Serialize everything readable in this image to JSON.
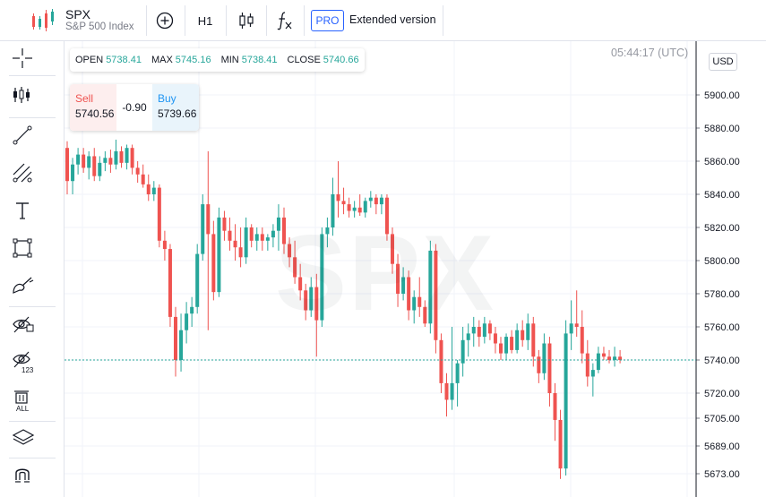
{
  "header": {
    "symbol": "SPX",
    "description": "S&P 500 Index",
    "interval": "H1",
    "pro_badge": "PRO",
    "extended_label": "Extended version",
    "icons": [
      "candles-logo-icon",
      "add-symbol-icon",
      "candle-style-icon",
      "indicators-fx-icon"
    ]
  },
  "left_toolbar": {
    "tools": [
      "crosshair-icon",
      "bar-tools-icon",
      "trend-line-icon",
      "fib-tools-icon",
      "text-icon",
      "rectangle-icon",
      "brush-icon",
      "hide-drawings-icon",
      "hide-indicators-icon",
      "remove-all-icon",
      "layers-icon",
      "magnet-icon"
    ],
    "remove_all_label": "ALL",
    "hide_indicators_label": "123"
  },
  "ohlc": {
    "open_label": "OPEN",
    "open": "5738.41",
    "max_label": "MAX",
    "max": "5745.16",
    "min_label": "MIN",
    "min": "5738.41",
    "close_label": "CLOSE",
    "close": "5740.66"
  },
  "trade": {
    "sell_label": "Sell",
    "sell_price": "5740.56",
    "spread": "-0.90",
    "buy_label": "Buy",
    "buy_price": "5739.66"
  },
  "clock": "05:44:17 (UTC)",
  "currency": "USD",
  "watermark": "SPX",
  "colors": {
    "up": "#26a69a",
    "down": "#ef5350",
    "last_price_line": "#26a69a",
    "accent": "#2962ff"
  },
  "chart_data": {
    "type": "candlestick",
    "last_price": 5740.0,
    "y_ticks": [
      {
        "value": 5900.0,
        "label": "5900.00"
      },
      {
        "value": 5880.0,
        "label": "5880.00"
      },
      {
        "value": 5860.0,
        "label": "5860.00"
      },
      {
        "value": 5840.0,
        "label": "5840.00"
      },
      {
        "value": 5820.0,
        "label": "5820.00"
      },
      {
        "value": 5800.0,
        "label": "5800.00"
      },
      {
        "value": 5780.0,
        "label": "5780.00"
      },
      {
        "value": 5760.0,
        "label": "5760.00"
      },
      {
        "value": 5740.0,
        "label": "5740.00"
      },
      {
        "value": 5720.0,
        "label": "5720.00"
      },
      {
        "value": 5705.0,
        "label": "5705.00"
      },
      {
        "value": 5689.0,
        "label": "5689.00"
      },
      {
        "value": 5673.0,
        "label": "5673.00"
      }
    ],
    "candles": [
      [
        5868,
        5872,
        5840,
        5848
      ],
      [
        5848,
        5862,
        5840,
        5858
      ],
      [
        5858,
        5868,
        5852,
        5864
      ],
      [
        5864,
        5868,
        5853,
        5856
      ],
      [
        5856,
        5866,
        5849,
        5863
      ],
      [
        5863,
        5868,
        5848,
        5851
      ],
      [
        5851,
        5863,
        5848,
        5859
      ],
      [
        5859,
        5866,
        5854,
        5862
      ],
      [
        5862,
        5867,
        5853,
        5858
      ],
      [
        5858,
        5873,
        5855,
        5866
      ],
      [
        5866,
        5869,
        5856,
        5859
      ],
      [
        5859,
        5870,
        5855,
        5868
      ],
      [
        5868,
        5870,
        5852,
        5856
      ],
      [
        5856,
        5860,
        5847,
        5852
      ],
      [
        5852,
        5858,
        5844,
        5846
      ],
      [
        5846,
        5852,
        5836,
        5840
      ],
      [
        5840,
        5848,
        5836,
        5844
      ],
      [
        5844,
        5846,
        5808,
        5812
      ],
      [
        5812,
        5818,
        5800,
        5807
      ],
      [
        5807,
        5810,
        5760,
        5766
      ],
      [
        5766,
        5772,
        5730,
        5740
      ],
      [
        5740,
        5768,
        5733,
        5758
      ],
      [
        5758,
        5775,
        5750,
        5768
      ],
      [
        5768,
        5778,
        5760,
        5772
      ],
      [
        5772,
        5810,
        5768,
        5804
      ],
      [
        5804,
        5840,
        5800,
        5834
      ],
      [
        5834,
        5866,
        5758,
        5816
      ],
      [
        5816,
        5824,
        5776,
        5781
      ],
      [
        5781,
        5832,
        5778,
        5826
      ],
      [
        5826,
        5830,
        5812,
        5818
      ],
      [
        5818,
        5826,
        5806,
        5812
      ],
      [
        5812,
        5822,
        5800,
        5808
      ],
      [
        5808,
        5820,
        5796,
        5802
      ],
      [
        5802,
        5826,
        5798,
        5820
      ],
      [
        5820,
        5822,
        5808,
        5812
      ],
      [
        5812,
        5820,
        5806,
        5816
      ],
      [
        5816,
        5820,
        5806,
        5812
      ],
      [
        5812,
        5816,
        5806,
        5814
      ],
      [
        5814,
        5822,
        5808,
        5818
      ],
      [
        5818,
        5834,
        5806,
        5826
      ],
      [
        5826,
        5832,
        5804,
        5810
      ],
      [
        5810,
        5814,
        5796,
        5802
      ],
      [
        5802,
        5812,
        5786,
        5790
      ],
      [
        5790,
        5798,
        5776,
        5782
      ],
      [
        5782,
        5786,
        5764,
        5770
      ],
      [
        5770,
        5790,
        5766,
        5784
      ],
      [
        5784,
        5792,
        5742,
        5764
      ],
      [
        5764,
        5820,
        5760,
        5816
      ],
      [
        5816,
        5826,
        5808,
        5820
      ],
      [
        5820,
        5850,
        5815,
        5840
      ],
      [
        5840,
        5860,
        5826,
        5836
      ],
      [
        5836,
        5844,
        5828,
        5834
      ],
      [
        5834,
        5838,
        5826,
        5830
      ],
      [
        5830,
        5836,
        5826,
        5832
      ],
      [
        5832,
        5840,
        5827,
        5829
      ],
      [
        5829,
        5838,
        5826,
        5836
      ],
      [
        5836,
        5842,
        5832,
        5838
      ],
      [
        5838,
        5840,
        5828,
        5834
      ],
      [
        5834,
        5840,
        5828,
        5838
      ],
      [
        5838,
        5840,
        5812,
        5816
      ],
      [
        5816,
        5820,
        5792,
        5798
      ],
      [
        5798,
        5804,
        5772,
        5780
      ],
      [
        5780,
        5796,
        5776,
        5790
      ],
      [
        5790,
        5794,
        5764,
        5770
      ],
      [
        5770,
        5782,
        5762,
        5778
      ],
      [
        5778,
        5790,
        5766,
        5772
      ],
      [
        5772,
        5776,
        5760,
        5762
      ],
      [
        5762,
        5812,
        5756,
        5806
      ],
      [
        5806,
        5810,
        5744,
        5752
      ],
      [
        5752,
        5756,
        5720,
        5726
      ],
      [
        5726,
        5732,
        5706,
        5716
      ],
      [
        5716,
        5760,
        5710,
        5726
      ],
      [
        5726,
        5740,
        5712,
        5738
      ],
      [
        5738,
        5760,
        5730,
        5752
      ],
      [
        5752,
        5762,
        5742,
        5756
      ],
      [
        5756,
        5766,
        5748,
        5760
      ],
      [
        5760,
        5764,
        5748,
        5754
      ],
      [
        5754,
        5766,
        5750,
        5762
      ],
      [
        5762,
        5764,
        5752,
        5756
      ],
      [
        5756,
        5760,
        5744,
        5750
      ],
      [
        5750,
        5754,
        5740,
        5744
      ],
      [
        5744,
        5756,
        5740,
        5754
      ],
      [
        5754,
        5758,
        5744,
        5746
      ],
      [
        5746,
        5762,
        5744,
        5758
      ],
      [
        5758,
        5764,
        5748,
        5752
      ],
      [
        5752,
        5768,
        5746,
        5762
      ],
      [
        5762,
        5766,
        5736,
        5742
      ],
      [
        5742,
        5746,
        5726,
        5732
      ],
      [
        5732,
        5756,
        5728,
        5750
      ],
      [
        5750,
        5754,
        5712,
        5720
      ],
      [
        5720,
        5726,
        5692,
        5704
      ],
      [
        5704,
        5710,
        5670,
        5676
      ],
      [
        5676,
        5764,
        5672,
        5756
      ],
      [
        5756,
        5776,
        5746,
        5762
      ],
      [
        5762,
        5782,
        5754,
        5760
      ],
      [
        5760,
        5770,
        5738,
        5744
      ],
      [
        5744,
        5752,
        5724,
        5730
      ],
      [
        5730,
        5738,
        5718,
        5734
      ],
      [
        5734,
        5748,
        5732,
        5744
      ],
      [
        5744,
        5748,
        5740,
        5742
      ],
      [
        5742,
        5746,
        5738,
        5740
      ],
      [
        5740,
        5748,
        5736,
        5742
      ],
      [
        5742,
        5746,
        5738,
        5740
      ]
    ]
  }
}
